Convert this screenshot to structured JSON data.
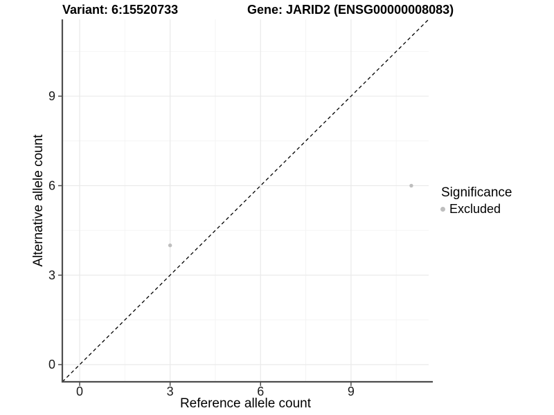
{
  "titles": {
    "variant": "Variant: 6:15520733",
    "gene": "Gene: JARID2 (ENSG00000008083)"
  },
  "chart_data": {
    "type": "scatter",
    "xlabel": "Reference allele count",
    "ylabel": "Alternative allele count",
    "xlim": [
      -0.575,
      11.575
    ],
    "ylim": [
      -0.575,
      11.575
    ],
    "x_ticks": [
      0,
      3,
      6,
      9
    ],
    "y_ticks": [
      0,
      3,
      6,
      9
    ],
    "x_minor_ticks": [
      1.5,
      4.5,
      7.5,
      10.5
    ],
    "y_minor_ticks": [
      1.5,
      4.5,
      7.5,
      10.5
    ],
    "grid": "major+minor",
    "reference_line": {
      "type": "identity",
      "style": "dashed",
      "color": "#000000"
    },
    "series": [
      {
        "name": "Excluded",
        "color": "#bebebe",
        "points": [
          {
            "x": 3,
            "y": 4
          },
          {
            "x": 11,
            "y": 6
          }
        ]
      }
    ],
    "legend": {
      "title": "Significance",
      "position": "right",
      "entries": [
        {
          "label": "Excluded",
          "color": "#bebebe"
        }
      ]
    }
  },
  "colors": {
    "axis_line": "#4d4d4d",
    "tick_mark": "#4d4d4d",
    "tick_label": "#1a1a1a",
    "grid_major": "#e9e9e9",
    "grid_minor": "#f4f4f4",
    "background": "#ffffff"
  }
}
